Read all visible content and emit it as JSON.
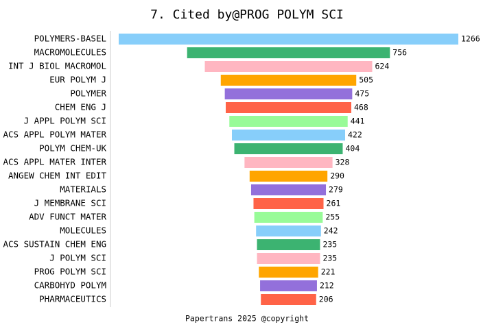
{
  "chart_data": {
    "type": "funnel-bar",
    "title": "7. Cited by@PROG POLYM SCI",
    "footer": "Papertrans 2025 @copyright",
    "categories": [
      "POLYMERS-BASEL",
      "MACROMOLECULES",
      "INT J BIOL MACROMOL",
      "EUR POLYM J",
      "POLYMER",
      "CHEM ENG J",
      "J APPL POLYM SCI",
      "ACS APPL POLYM MATER",
      "POLYM CHEM-UK",
      "ACS APPL MATER INTER",
      "ANGEW CHEM INT EDIT",
      "MATERIALS",
      "J MEMBRANE SCI",
      "ADV FUNCT MATER",
      "MOLECULES",
      "ACS SUSTAIN CHEM ENG",
      "J POLYM SCI",
      "PROG POLYM SCI",
      "CARBOHYD POLYM",
      "PHARMACEUTICS"
    ],
    "values": [
      1266,
      756,
      624,
      505,
      475,
      468,
      441,
      422,
      404,
      328,
      290,
      279,
      261,
      255,
      242,
      235,
      235,
      221,
      212,
      206
    ],
    "colors": [
      "#87CEFA",
      "#3CB371",
      "#FFB6C1",
      "#FFA500",
      "#9370DB",
      "#FF6347",
      "#98FB98"
    ]
  }
}
